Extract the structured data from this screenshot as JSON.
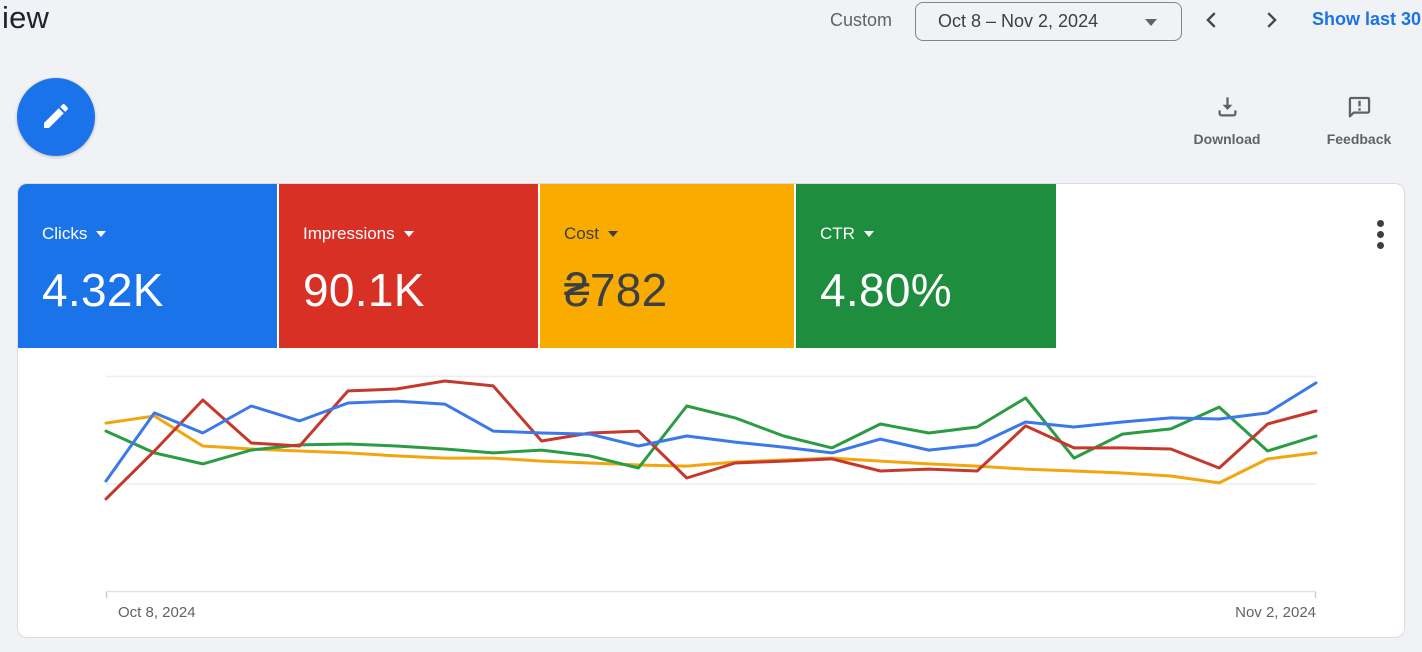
{
  "header": {
    "title": "iew",
    "range_label": "Custom",
    "date_range": "Oct 8 – Nov 2, 2024",
    "show_last_link": "Show last 30",
    "link_color": "#1a73e8"
  },
  "toolbar": {
    "download_label": "Download",
    "feedback_label": "Feedback",
    "icon_color": "#5f6368"
  },
  "icons": {
    "edit": "pencil",
    "date_caret": "triangle-down",
    "prev": "chevron-left",
    "next": "chevron-right",
    "download": "arrow-down-into-tray",
    "feedback": "speech-bubble-exclamation",
    "more": "kebab-vertical",
    "metric_caret": "triangle-down"
  },
  "cards": [
    {
      "label": "Clicks",
      "value": "4.32K",
      "bg": "#1a73e8",
      "fg": "#ffffff"
    },
    {
      "label": "Impressions",
      "value": "90.1K",
      "bg": "#d93025",
      "fg": "#ffffff"
    },
    {
      "label": "Cost",
      "value": "₴782",
      "bg": "#f9ab00",
      "fg": "#3c4043"
    },
    {
      "label": "CTR",
      "value": "4.80%",
      "bg": "#1e8e3e",
      "fg": "#ffffff"
    }
  ],
  "chart_data": {
    "type": "line",
    "title": "",
    "xlabel": "",
    "ylabel": "",
    "x_start_label": "Oct 8, 2024",
    "x_end_label": "Nov 2, 2024",
    "x_points": 26,
    "ylim": [
      0,
      100
    ],
    "y_axis_labeled": false,
    "grid": "horizontal",
    "gridline_values": [
      0,
      50,
      100
    ],
    "legend_position": "none",
    "series": [
      {
        "name": "Clicks",
        "color": "#3c78e8",
        "values": [
          51.4,
          82.9,
          73.6,
          86.1,
          79.2,
          87.5,
          88.4,
          87.0,
          74.5,
          73.6,
          73.1,
          67.6,
          72.2,
          69.4,
          67.1,
          64.4,
          70.8,
          65.7,
          68.1,
          78.7,
          76.4,
          78.7,
          80.6,
          80.1,
          82.9,
          96.8
        ]
      },
      {
        "name": "Impressions",
        "color": "#c5392c",
        "values": [
          43.1,
          65.3,
          88.9,
          69.0,
          67.6,
          93.1,
          94.0,
          97.7,
          95.4,
          69.9,
          73.6,
          74.5,
          52.8,
          59.7,
          60.6,
          61.6,
          56.0,
          56.9,
          56.0,
          76.9,
          66.7,
          66.7,
          66.2,
          57.4,
          77.8,
          83.8
        ]
      },
      {
        "name": "Cost",
        "color": "#f2a60c",
        "values": [
          78.2,
          81.5,
          67.6,
          66.2,
          65.3,
          64.4,
          63.0,
          62.0,
          62.0,
          60.6,
          59.7,
          58.8,
          58.3,
          60.2,
          61.1,
          62.0,
          60.6,
          59.3,
          58.3,
          56.9,
          56.0,
          55.1,
          53.7,
          50.5,
          61.6,
          64.4
        ]
      },
      {
        "name": "CTR",
        "color": "#2b9c44",
        "values": [
          74.5,
          64.4,
          59.3,
          65.7,
          68.1,
          68.5,
          67.6,
          66.2,
          64.4,
          65.7,
          63.0,
          57.4,
          86.1,
          80.6,
          72.2,
          66.7,
          77.8,
          73.6,
          76.4,
          89.8,
          62.0,
          73.1,
          75.5,
          85.6,
          65.3,
          72.2
        ]
      }
    ]
  }
}
